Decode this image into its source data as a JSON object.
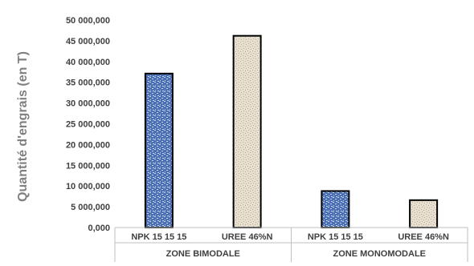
{
  "chart_data": {
    "type": "bar",
    "title": "",
    "ylabel": "Quantité d'engrais  (en T)",
    "ylim": [
      0,
      50000000
    ],
    "ytick_step": 5000000,
    "ytick_labels": [
      "0,000",
      "5 000,000",
      "10 000,000",
      "15 000,000",
      "20 000,000",
      "25 000,000",
      "30 000,000",
      "35 000,000",
      "40 000,000",
      "45 000,000",
      "50 000,000"
    ],
    "grid": false,
    "legend": "none",
    "groups": [
      {
        "name": "ZONE BIMODALE",
        "bars": [
          {
            "category": "NPK 15 15 15",
            "value": 37100000,
            "pattern": "blue"
          },
          {
            "category": "UREE 46%N",
            "value": 46200000,
            "pattern": "beige"
          }
        ]
      },
      {
        "name": "ZONE MONOMODALE",
        "bars": [
          {
            "category": "NPK 15 15 15",
            "value": 8800000,
            "pattern": "blue"
          },
          {
            "category": "UREE 46%N",
            "value": 6600000,
            "pattern": "beige"
          }
        ]
      }
    ],
    "colors": {
      "npk_fill": "#4a6fb5",
      "npk_fleck": "#c9d6ee",
      "uree_fill": "#e7dfcf",
      "uree_fleck": "#b8ab92",
      "bar_border": "#000000",
      "axis": "#bfbfbf"
    }
  }
}
